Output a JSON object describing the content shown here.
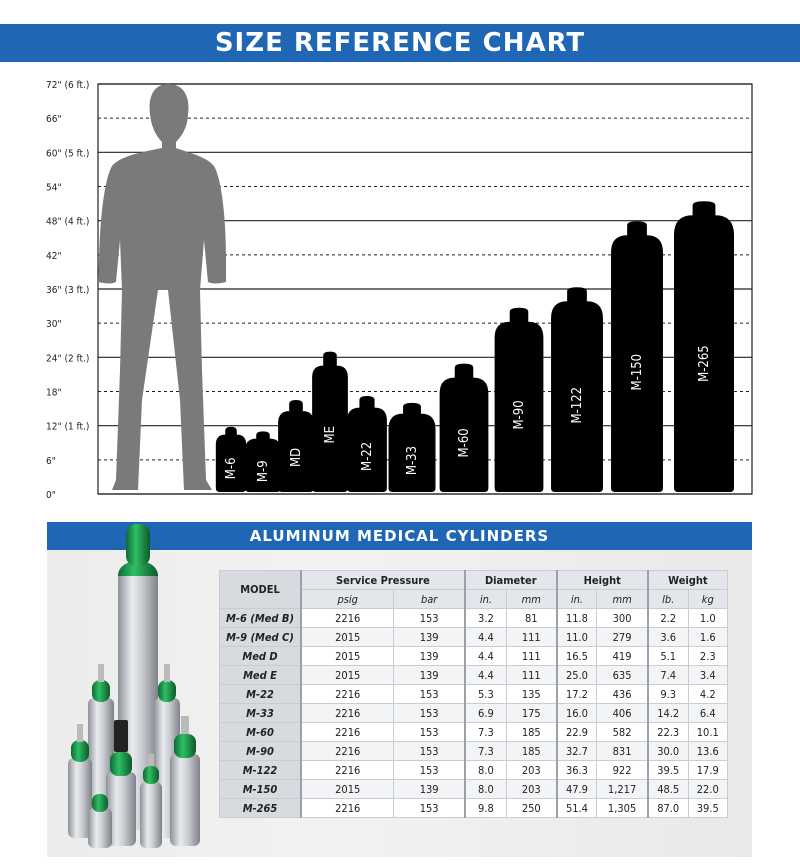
{
  "title": "SIZE REFERENCE CHART",
  "subtitle": "ALUMINUM MEDICAL CYLINDERS",
  "colors": {
    "accent": "#1f66b5",
    "silhouette": "#7a7a7a",
    "cylinder": "#000000",
    "valve": "#1e9a4b"
  },
  "chart_data": {
    "type": "bar",
    "y_unit": "inches",
    "ylim": [
      0,
      72
    ],
    "yticks": [
      {
        "value": 0,
        "label": "0\"",
        "style": "solid"
      },
      {
        "value": 6,
        "label": "6\"",
        "style": "dashed"
      },
      {
        "value": 12,
        "label": "12\" (1 ft.)",
        "style": "solid"
      },
      {
        "value": 18,
        "label": "18\"",
        "style": "dashed"
      },
      {
        "value": 24,
        "label": "24\" (2 ft.)",
        "style": "solid"
      },
      {
        "value": 30,
        "label": "30\"",
        "style": "dashed"
      },
      {
        "value": 36,
        "label": "36\" (3 ft.)",
        "style": "solid"
      },
      {
        "value": 42,
        "label": "42\"",
        "style": "dashed"
      },
      {
        "value": 48,
        "label": "48\" (4 ft.)",
        "style": "solid"
      },
      {
        "value": 54,
        "label": "54\"",
        "style": "dashed"
      },
      {
        "value": 60,
        "label": "60\" (5 ft.)",
        "style": "solid"
      },
      {
        "value": 66,
        "label": "66\"",
        "style": "dashed"
      },
      {
        "value": 72,
        "label": "72\" (6 ft.)",
        "style": "solid"
      }
    ],
    "reference_height": 72,
    "categories": [
      "M-6",
      "M-9",
      "MD",
      "ME",
      "M-22",
      "M-33",
      "M-60",
      "M-90",
      "M-122",
      "M-150",
      "M-265"
    ],
    "values": [
      11.8,
      11.0,
      16.5,
      25.0,
      17.2,
      16.0,
      22.9,
      32.7,
      36.3,
      47.9,
      51.4
    ],
    "diameters": [
      3.2,
      4.4,
      4.4,
      4.4,
      5.3,
      6.9,
      7.3,
      7.3,
      8.0,
      8.0,
      9.8
    ],
    "grid": true
  },
  "table": {
    "header_groups": [
      "MODEL",
      "Service Pressure",
      "Diameter",
      "Height",
      "Weight"
    ],
    "units": [
      "psig",
      "bar",
      "in.",
      "mm",
      "in.",
      "mm",
      "lb.",
      "kg"
    ],
    "rows": [
      [
        "M-6 (Med B)",
        "2216",
        "153",
        "3.2",
        "81",
        "11.8",
        "300",
        "2.2",
        "1.0"
      ],
      [
        "M-9 (Med C)",
        "2015",
        "139",
        "4.4",
        "111",
        "11.0",
        "279",
        "3.6",
        "1.6"
      ],
      [
        "Med D",
        "2015",
        "139",
        "4.4",
        "111",
        "16.5",
        "419",
        "5.1",
        "2.3"
      ],
      [
        "Med E",
        "2015",
        "139",
        "4.4",
        "111",
        "25.0",
        "635",
        "7.4",
        "3.4"
      ],
      [
        "M-22",
        "2216",
        "153",
        "5.3",
        "135",
        "17.2",
        "436",
        "9.3",
        "4.2"
      ],
      [
        "M-33",
        "2216",
        "153",
        "6.9",
        "175",
        "16.0",
        "406",
        "14.2",
        "6.4"
      ],
      [
        "M-60",
        "2216",
        "153",
        "7.3",
        "185",
        "22.9",
        "582",
        "22.3",
        "10.1"
      ],
      [
        "M-90",
        "2216",
        "153",
        "7.3",
        "185",
        "32.7",
        "831",
        "30.0",
        "13.6"
      ],
      [
        "M-122",
        "2216",
        "153",
        "8.0",
        "203",
        "36.3",
        "922",
        "39.5",
        "17.9"
      ],
      [
        "M-150",
        "2015",
        "139",
        "8.0",
        "203",
        "47.9",
        "1,217",
        "48.5",
        "22.0"
      ],
      [
        "M-265",
        "2216",
        "153",
        "9.8",
        "250",
        "51.4",
        "1,305",
        "87.0",
        "39.5"
      ]
    ]
  }
}
